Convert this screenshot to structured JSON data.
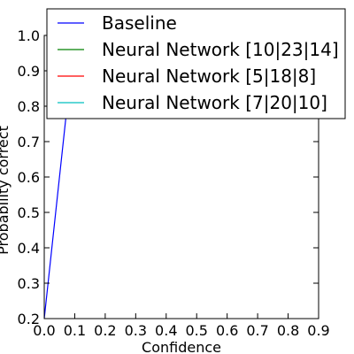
{
  "chart_data": {
    "type": "line",
    "xlabel": "Confidence",
    "ylabel": "Probability correct",
    "xlim": [
      0.0,
      0.9
    ],
    "ylim": [
      0.2,
      1.0
    ],
    "x_ticks": [
      "0.0",
      "0.1",
      "0.2",
      "0.3",
      "0.4",
      "0.5",
      "0.6",
      "0.7",
      "0.8",
      "0.9"
    ],
    "y_ticks": [
      "0.2",
      "0.3",
      "0.4",
      "0.5",
      "0.6",
      "0.7",
      "0.8",
      "0.9",
      "1.0"
    ],
    "grid": false,
    "legend_position": "top",
    "series": [
      {
        "name": "Baseline",
        "color": "#0000ff",
        "x": [
          0.0,
          0.1
        ],
        "y": [
          0.2,
          1.0
        ]
      },
      {
        "name": "Neural Network [10|23|14]",
        "color": "#008000",
        "x": [],
        "y": []
      },
      {
        "name": "Neural Network [5|18|8]",
        "color": "#ff0000",
        "x": [],
        "y": []
      },
      {
        "name": "Neural Network [7|20|10]",
        "color": "#00bfbf",
        "x": [],
        "y": []
      }
    ]
  }
}
